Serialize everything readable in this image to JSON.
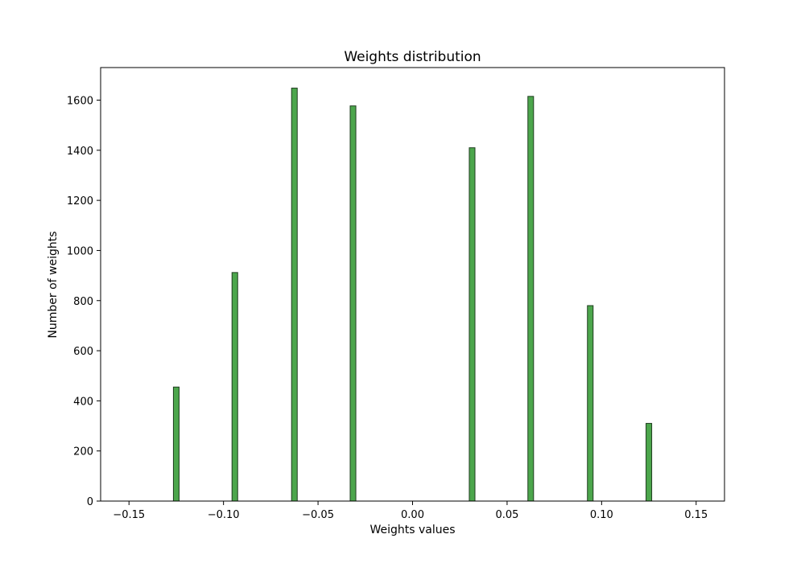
{
  "chart_data": {
    "type": "bar",
    "title": "Weights distribution",
    "xlabel": "Weights values",
    "ylabel": "Number of weights",
    "xlim": [
      -0.165,
      0.165
    ],
    "ylim": [
      0,
      1730
    ],
    "x_ticks": [
      -0.15,
      -0.1,
      -0.05,
      0.0,
      0.05,
      0.1,
      0.15
    ],
    "x_tick_labels": [
      "−0.15",
      "−0.10",
      "−0.05",
      "0.00",
      "0.05",
      "0.10",
      "0.15"
    ],
    "y_ticks": [
      0,
      200,
      400,
      600,
      800,
      1000,
      1200,
      1400,
      1600
    ],
    "y_tick_labels": [
      "0",
      "200",
      "400",
      "600",
      "800",
      "1000",
      "1200",
      "1400",
      "1600"
    ],
    "bin_width": 0.003,
    "bars": [
      {
        "x": -0.125,
        "value": 455
      },
      {
        "x": -0.094,
        "value": 912
      },
      {
        "x": -0.0625,
        "value": 1648
      },
      {
        "x": -0.0315,
        "value": 1577
      },
      {
        "x": 0.0315,
        "value": 1410
      },
      {
        "x": 0.0625,
        "value": 1615
      },
      {
        "x": 0.094,
        "value": 780
      },
      {
        "x": 0.125,
        "value": 310
      }
    ],
    "bar_color": "#4ca64c",
    "bar_edge_color": "#1f3d1f",
    "grid": false,
    "legend": "none"
  }
}
